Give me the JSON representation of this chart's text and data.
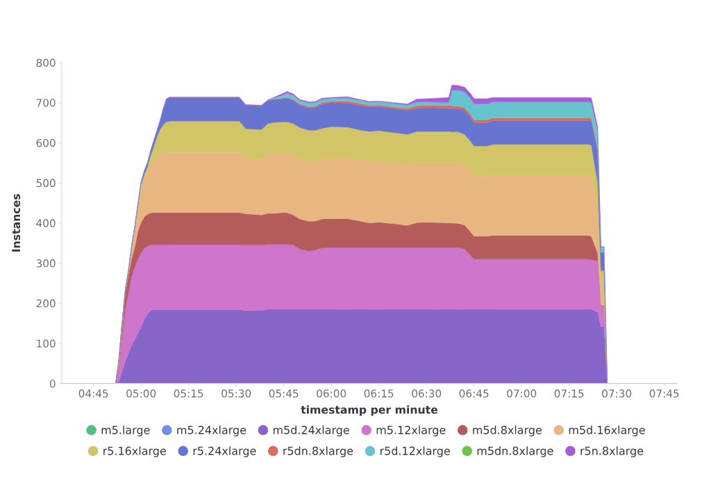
{
  "chart_data": {
    "type": "area",
    "stacked": true,
    "xlabel": "timestamp per minute",
    "ylabel": "Instances",
    "legend": "bottom",
    "x": [
      4.5833,
      4.8667,
      4.8833,
      4.9,
      4.9167,
      4.9333,
      4.95,
      4.9667,
      4.9833,
      5.0,
      5.0167,
      5.0333,
      5.05,
      5.0667,
      5.0833,
      5.1,
      5.1167,
      5.1333,
      5.15,
      5.5167,
      5.55,
      5.6333,
      5.6667,
      5.7,
      5.75,
      5.7667,
      5.8,
      5.8333,
      5.8833,
      5.9167,
      5.95,
      6.0,
      6.0833,
      6.15,
      6.2,
      6.25,
      6.3333,
      6.4,
      6.45,
      6.5,
      6.6167,
      6.6333,
      6.6667,
      6.7,
      6.7333,
      6.75,
      6.8167,
      6.85,
      7.35,
      7.3667,
      7.4,
      7.4167,
      7.4333,
      7.45,
      7.8167
    ],
    "xlim": [
      4.5833,
      7.8167
    ],
    "xticks": [
      {
        "value": 4.75,
        "label": "04:45"
      },
      {
        "value": 5.0,
        "label": "05:00"
      },
      {
        "value": 5.25,
        "label": "05:15"
      },
      {
        "value": 5.5,
        "label": "05:30"
      },
      {
        "value": 5.75,
        "label": "05:45"
      },
      {
        "value": 6.0,
        "label": "06:00"
      },
      {
        "value": 6.25,
        "label": "06:15"
      },
      {
        "value": 6.5,
        "label": "06:30"
      },
      {
        "value": 6.75,
        "label": "06:45"
      },
      {
        "value": 7.0,
        "label": "07:00"
      },
      {
        "value": 7.25,
        "label": "07:15"
      },
      {
        "value": 7.5,
        "label": "07:30"
      },
      {
        "value": 7.75,
        "label": "07:45"
      }
    ],
    "ylim": [
      0,
      800
    ],
    "yticks": [
      0,
      100,
      200,
      300,
      400,
      500,
      600,
      700,
      800
    ],
    "series": [
      {
        "name": "m5.large",
        "color": "#54c07e",
        "values": [
          null,
          null,
          null,
          null,
          null,
          null,
          null,
          null,
          null,
          null,
          null,
          null,
          null,
          null,
          null,
          null,
          null,
          null,
          null,
          null,
          null,
          null,
          null,
          null,
          null,
          null,
          null,
          null,
          null,
          null,
          null,
          null,
          null,
          null,
          null,
          null,
          null,
          null,
          null,
          null,
          null,
          null,
          null,
          null,
          null,
          null,
          null,
          null,
          null,
          null,
          null,
          null,
          null,
          null,
          null
        ]
      },
      {
        "name": "m5.24xlarge",
        "color": "#6f91e3",
        "values": [
          null,
          null,
          null,
          null,
          null,
          null,
          null,
          null,
          null,
          null,
          null,
          null,
          null,
          null,
          null,
          null,
          null,
          null,
          null,
          null,
          null,
          null,
          null,
          null,
          null,
          null,
          null,
          null,
          null,
          null,
          null,
          null,
          null,
          null,
          null,
          null,
          null,
          null,
          null,
          null,
          null,
          null,
          null,
          null,
          null,
          null,
          null,
          null,
          null,
          null,
          null,
          null,
          null,
          null,
          null
        ]
      },
      {
        "name": "m5d.24xlarge",
        "color": "#8865c9",
        "values": [
          0,
          0,
          5,
          30,
          55,
          75,
          95,
          110,
          125,
          140,
          160,
          172,
          182,
          184,
          184,
          184,
          184,
          184,
          184,
          184,
          182,
          182,
          185,
          185,
          185,
          185,
          185,
          185,
          185,
          185,
          185,
          185,
          185,
          185,
          185,
          185,
          185,
          185,
          185,
          185,
          185,
          185,
          185,
          185,
          185,
          185,
          185,
          185,
          185,
          185,
          178,
          142,
          142,
          0,
          0
        ]
      },
      {
        "name": "m5.12xlarge",
        "color": "#cd76cc",
        "values": [
          0,
          0,
          25,
          80,
          130,
          150,
          170,
          180,
          185,
          185,
          177,
          170,
          163,
          162,
          162,
          162,
          162,
          162,
          162,
          162,
          163,
          163,
          162,
          162,
          162,
          162,
          160,
          150,
          145,
          148,
          153,
          154,
          154,
          154,
          154,
          154,
          154,
          154,
          154,
          154,
          154,
          154,
          154,
          150,
          133,
          125,
          125,
          125,
          125,
          124,
          127,
          51,
          51,
          0,
          0
        ]
      },
      {
        "name": "m5d.8xlarge",
        "color": "#b45c5b",
        "values": [
          0,
          0,
          10,
          20,
          40,
          45,
          45,
          50,
          70,
          77,
          78,
          80,
          80,
          80,
          80,
          80,
          80,
          80,
          80,
          80,
          78,
          75,
          77,
          77,
          79,
          79,
          75,
          75,
          74,
          72,
          72,
          72,
          72,
          66,
          61,
          63,
          59,
          55,
          62,
          63,
          61,
          61,
          60,
          60,
          59,
          57,
          57,
          59,
          59,
          58,
          20,
          2,
          2,
          0,
          0
        ]
      },
      {
        "name": "m5d.16xlarge",
        "color": "#e8b680",
        "values": [
          0,
          0,
          15,
          15,
          3,
          6,
          22,
          40,
          55,
          83,
          95,
          106,
          123,
          132,
          140,
          144,
          148,
          150,
          150,
          150,
          138,
          138,
          148,
          150,
          149,
          149,
          150,
          150,
          149,
          148,
          148,
          151,
          151,
          151,
          153,
          153,
          153,
          153,
          149,
          148,
          150,
          149,
          150,
          150,
          151,
          150,
          150,
          151,
          151,
          151,
          115,
          57,
          57,
          0,
          0
        ]
      },
      {
        "name": "r5.16xlarge",
        "color": "#d2c567",
        "values": [
          0,
          0,
          2,
          3,
          2,
          2,
          4,
          6,
          7,
          10,
          10,
          12,
          20,
          32,
          49,
          63,
          71,
          76,
          78,
          78,
          74,
          75,
          76,
          77,
          77,
          77,
          78,
          78,
          78,
          78,
          78,
          78,
          77,
          76,
          75,
          75,
          74,
          74,
          78,
          78,
          78,
          78,
          78,
          76,
          75,
          75,
          75,
          76,
          76,
          76,
          60,
          29,
          29,
          0,
          0
        ]
      },
      {
        "name": "r5.24xlarge",
        "color": "#6775d1",
        "values": [
          0,
          0,
          3,
          2,
          2,
          4,
          6,
          6,
          5,
          7,
          10,
          10,
          12,
          15,
          15,
          22,
          40,
          56,
          58,
          58,
          58,
          59,
          57,
          57,
          58,
          59,
          58,
          56,
          56,
          57,
          60,
          60,
          60,
          61,
          61,
          60,
          60,
          60,
          58,
          60,
          58,
          58,
          58,
          60,
          60,
          58,
          58,
          59,
          59,
          59,
          80,
          46,
          46,
          0,
          0
        ]
      },
      {
        "name": "r5dn.8xlarge",
        "color": "#dc6a5a",
        "values": [
          null,
          null,
          null,
          null,
          null,
          null,
          null,
          null,
          null,
          null,
          null,
          null,
          null,
          null,
          null,
          null,
          0,
          1,
          1,
          1,
          1,
          1,
          1,
          1,
          2,
          2,
          2,
          3,
          3,
          3,
          4,
          4,
          5,
          5,
          4,
          4,
          4,
          4,
          6,
          5,
          7,
          7,
          6,
          6,
          7,
          7,
          7,
          7,
          7,
          7,
          5,
          0,
          null,
          null,
          null
        ]
      },
      {
        "name": "r5d.12xlarge",
        "color": "#67c4cf",
        "values": [
          0,
          0,
          0,
          0,
          0,
          0,
          0,
          0,
          0,
          0,
          0,
          0,
          0,
          0,
          0,
          0,
          0,
          0,
          0,
          0,
          0,
          0,
          0,
          3,
          8,
          11,
          10,
          8,
          10,
          10,
          8,
          7,
          8,
          8,
          8,
          8,
          9,
          9,
          10,
          9,
          7,
          39,
          40,
          40,
          40,
          40,
          40,
          40,
          40,
          40,
          45,
          14,
          14,
          0,
          0
        ]
      },
      {
        "name": "m5dn.8xlarge",
        "color": "#6cc24b",
        "values": [
          null,
          null,
          null,
          null,
          null,
          null,
          null,
          null,
          null,
          null,
          null,
          null,
          null,
          null,
          null,
          null,
          null,
          null,
          null,
          null,
          null,
          null,
          null,
          null,
          null,
          null,
          null,
          null,
          null,
          null,
          null,
          null,
          null,
          null,
          null,
          null,
          null,
          null,
          null,
          null,
          null,
          null,
          null,
          null,
          null,
          null,
          null,
          null,
          null,
          null,
          null,
          null,
          null,
          null,
          null
        ]
      },
      {
        "name": "r5n.8xlarge",
        "color": "#a45fd6",
        "values": [
          0,
          0,
          0,
          0,
          0,
          0,
          0,
          0,
          0,
          0,
          0,
          0,
          0,
          0,
          0,
          0,
          0,
          1,
          1,
          1,
          1,
          1,
          1,
          2,
          4,
          4,
          4,
          3,
          2,
          2,
          3,
          2,
          3,
          2,
          2,
          2,
          2,
          3,
          7,
          8,
          13,
          13,
          12,
          12,
          12,
          13,
          13,
          11,
          11,
          12,
          10,
          0,
          0,
          0,
          0
        ]
      }
    ]
  }
}
